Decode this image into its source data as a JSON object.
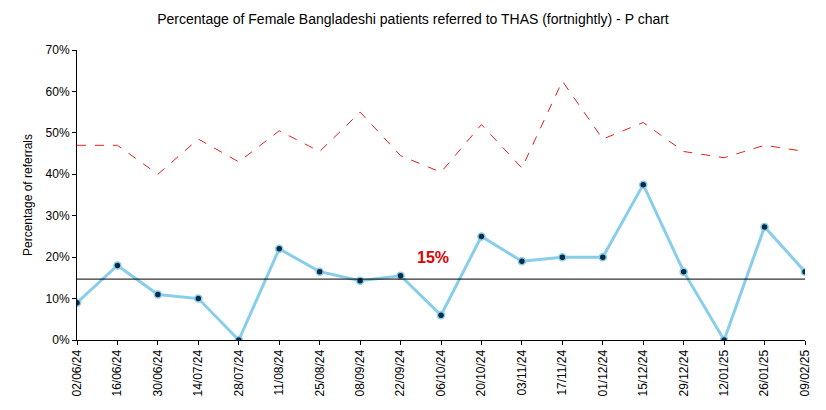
{
  "chart_data": {
    "type": "line",
    "title": "Percentage of Female Bangladeshi patients referred to THAS (fortnightly) - P chart",
    "y_label": "Percentage of referrals",
    "categories": [
      "02/06/24",
      "16/06/24",
      "30/06/24",
      "14/07/24",
      "28/07/24",
      "11/08/24",
      "25/08/24",
      "08/09/24",
      "22/09/24",
      "06/10/24",
      "20/10/24",
      "03/11/24",
      "17/11/24",
      "01/12/24",
      "15/12/24",
      "29/12/24",
      "12/01/25",
      "26/01/25",
      "09/02/25"
    ],
    "series": [
      {
        "color": "#87ceeb",
        "marker": "circle",
        "line_style": "solid",
        "values": [
          9,
          18,
          11,
          10,
          0,
          22,
          16.5,
          14.3,
          15.5,
          6,
          25,
          19,
          20,
          20,
          37.5,
          16.5,
          0,
          27.3,
          16.5
        ]
      },
      {
        "color": "#e02020",
        "marker": "none",
        "line_style": "dash",
        "values": [
          47,
          47,
          40,
          48.5,
          43,
          50.5,
          45.5,
          55,
          44.5,
          40.5,
          52,
          41.5,
          62.5,
          48.5,
          52.5,
          45.5,
          44,
          47,
          45.5
        ]
      },
      {
        "color": "#000000",
        "marker": "none",
        "line_style": "solid",
        "values": [
          14.7,
          14.7,
          14.7,
          14.7,
          14.7,
          14.7,
          14.7,
          14.7,
          14.7,
          14.7,
          14.7,
          14.7,
          14.7,
          14.7,
          14.7,
          14.7,
          14.7,
          14.7,
          14.7
        ]
      }
    ],
    "annotations": [
      {
        "text": "15%",
        "category": "06/10/24",
        "y": 20,
        "color": "#e00000"
      }
    ],
    "ylim": [
      0,
      70
    ],
    "yticks": [
      {
        "value": 0,
        "label": "0%"
      },
      {
        "value": 10,
        "label": "10%"
      },
      {
        "value": 20,
        "label": "20%"
      },
      {
        "value": 30,
        "label": "30%"
      },
      {
        "value": 40,
        "label": "40%"
      },
      {
        "value": 50,
        "label": "50%"
      },
      {
        "value": 60,
        "label": "60%"
      },
      {
        "value": 70,
        "label": "70%"
      }
    ],
    "grid": false
  }
}
